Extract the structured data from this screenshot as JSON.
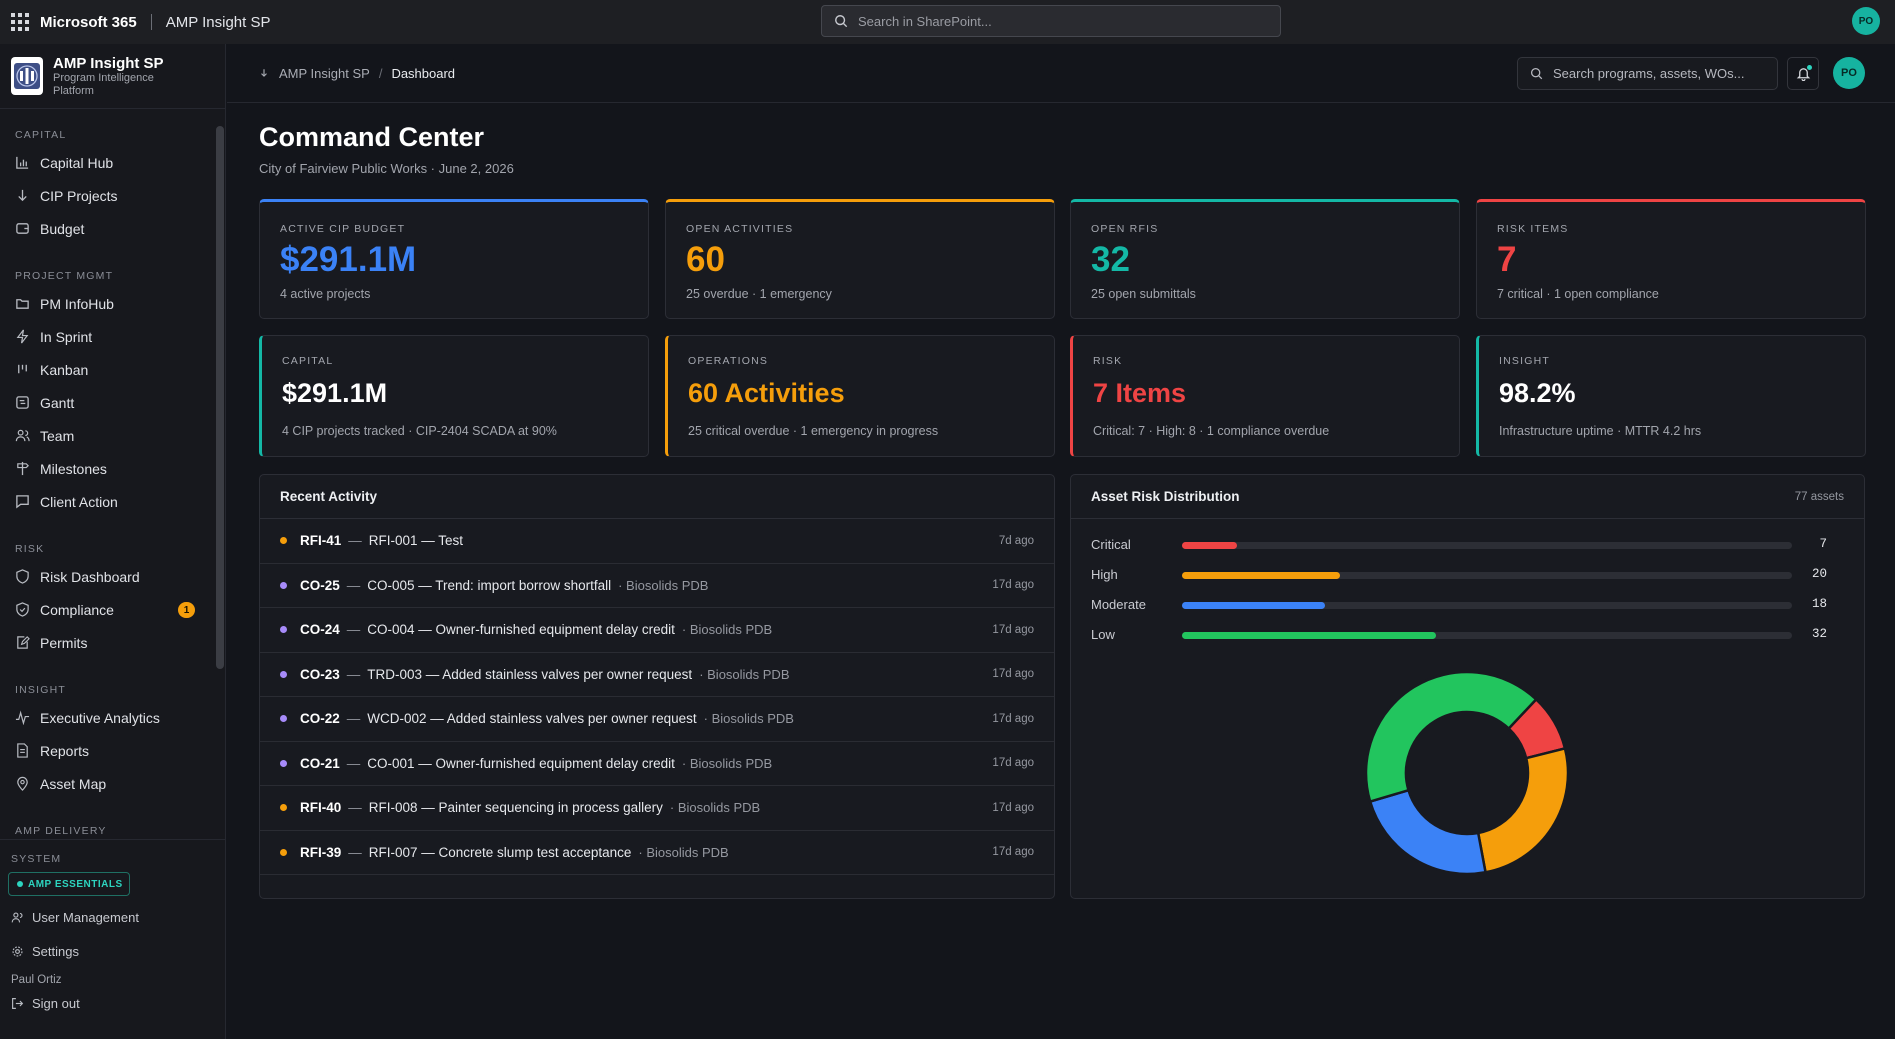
{
  "topbar": {
    "app_name": "Microsoft 365",
    "site_name": "AMP Insight SP",
    "search_placeholder": "Search in SharePoint...",
    "avatar_initials": "PO"
  },
  "brand": {
    "title": "AMP Insight SP",
    "subtitle": "Program Intelligence Platform"
  },
  "sidebar": {
    "sections": [
      {
        "title": "CAPITAL",
        "items": [
          {
            "label": "Capital Hub",
            "icon": "bar-chart-icon"
          },
          {
            "label": "CIP Projects",
            "icon": "arrow-down-icon"
          },
          {
            "label": "Budget",
            "icon": "wallet-icon"
          }
        ]
      },
      {
        "title": "PROJECT MGMT",
        "items": [
          {
            "label": "PM InfoHub",
            "icon": "folder-icon"
          },
          {
            "label": "In Sprint",
            "icon": "lightning-icon"
          },
          {
            "label": "Kanban",
            "icon": "kanban-icon"
          },
          {
            "label": "Gantt",
            "icon": "gantt-icon"
          },
          {
            "label": "Team",
            "icon": "team-icon"
          },
          {
            "label": "Milestones",
            "icon": "signpost-icon"
          },
          {
            "label": "Client Action",
            "icon": "message-icon"
          }
        ]
      },
      {
        "title": "RISK",
        "items": [
          {
            "label": "Risk Dashboard",
            "icon": "shield-icon"
          },
          {
            "label": "Compliance",
            "icon": "shield-check-icon",
            "badge": "1"
          },
          {
            "label": "Permits",
            "icon": "edit-doc-icon"
          }
        ]
      },
      {
        "title": "INSIGHT",
        "items": [
          {
            "label": "Executive Analytics",
            "icon": "activity-icon"
          },
          {
            "label": "Reports",
            "icon": "document-icon"
          },
          {
            "label": "Asset Map",
            "icon": "map-pin-icon"
          }
        ]
      },
      {
        "title": "AMP DELIVERY",
        "items": []
      }
    ],
    "system": {
      "title": "SYSTEM",
      "badge": "AMP ESSENTIALS",
      "user_management": "User Management",
      "settings": "Settings",
      "user_name": "Paul Ortiz",
      "sign_out": "Sign out"
    }
  },
  "header": {
    "breadcrumb_root": "AMP Insight SP",
    "breadcrumb_sep": "/",
    "breadcrumb_current": "Dashboard",
    "search_placeholder": "Search programs, assets, WOs...",
    "avatar_initials": "PO"
  },
  "page": {
    "title": "Command Center",
    "subtitle": "City of Fairview Public Works · June 2, 2026"
  },
  "kpis": [
    {
      "label": "ACTIVE CIP BUDGET",
      "value": "$291.1M",
      "sub": "4 active projects",
      "color": "#3b82f6"
    },
    {
      "label": "OPEN ACTIVITIES",
      "value": "60",
      "sub": "25 overdue · 1 emergency",
      "color": "#f59e0b"
    },
    {
      "label": "OPEN RFIS",
      "value": "32",
      "sub": "25 open submittals",
      "color": "#14b8a6"
    },
    {
      "label": "RISK ITEMS",
      "value": "7",
      "sub": "7 critical · 1 open compliance",
      "color": "#ef4444"
    }
  ],
  "summaries": [
    {
      "label": "CAPITAL",
      "value": "$291.1M",
      "sub": "4 CIP projects tracked · CIP-2404 SCADA at 90%",
      "accent": "#14b8a6",
      "value_color": "#ffffff"
    },
    {
      "label": "OPERATIONS",
      "value": "60 Activities",
      "sub": "25 critical overdue · 1 emergency in progress",
      "accent": "#f59e0b",
      "value_color": "#f59e0b"
    },
    {
      "label": "RISK",
      "value": "7 Items",
      "sub": "Critical: 7 · High: 8 · 1 compliance overdue",
      "accent": "#ef4444",
      "value_color": "#ef4444"
    },
    {
      "label": "INSIGHT",
      "value": "98.2%",
      "sub": "Infrastructure uptime · MTTR 4.2 hrs",
      "accent": "#14b8a6",
      "value_color": "#ffffff"
    }
  ],
  "recent_activity": {
    "title": "Recent Activity",
    "items": [
      {
        "id": "RFI-41",
        "title": "RFI-001 — Test",
        "project": "",
        "when": "7d ago",
        "color": "#f59e0b"
      },
      {
        "id": "CO-25",
        "title": "CO-005 — Trend: import borrow shortfall",
        "project": "· Biosolids PDB",
        "when": "17d ago",
        "color": "#a78bfa"
      },
      {
        "id": "CO-24",
        "title": "CO-004 — Owner-furnished equipment delay credit",
        "project": "· Biosolids PDB",
        "when": "17d ago",
        "color": "#a78bfa"
      },
      {
        "id": "CO-23",
        "title": "TRD-003 — Added stainless valves per owner request",
        "project": "· Biosolids PDB",
        "when": "17d ago",
        "color": "#a78bfa"
      },
      {
        "id": "CO-22",
        "title": "WCD-002 — Added stainless valves per owner request",
        "project": "· Biosolids PDB",
        "when": "17d ago",
        "color": "#a78bfa"
      },
      {
        "id": "CO-21",
        "title": "CO-001 — Owner-furnished equipment delay credit",
        "project": "· Biosolids PDB",
        "when": "17d ago",
        "color": "#a78bfa"
      },
      {
        "id": "RFI-40",
        "title": "RFI-008 — Painter sequencing in process gallery",
        "project": "· Biosolids PDB",
        "when": "17d ago",
        "color": "#f59e0b"
      },
      {
        "id": "RFI-39",
        "title": "RFI-007 — Concrete slump test acceptance",
        "project": "· Biosolids PDB",
        "when": "17d ago",
        "color": "#f59e0b"
      }
    ]
  },
  "asset_risk": {
    "title": "Asset Risk Distribution",
    "total_label": "77 assets",
    "categories": [
      {
        "label": "Critical",
        "value": 7,
        "color": "#ef4444"
      },
      {
        "label": "High",
        "value": 20,
        "color": "#f59e0b"
      },
      {
        "label": "Moderate",
        "value": 18,
        "color": "#3b82f6"
      },
      {
        "label": "Low",
        "value": 32,
        "color": "#22c55e"
      }
    ],
    "max": 77
  },
  "chart_data": {
    "type": "pie",
    "title": "Asset Risk Distribution",
    "categories": [
      "Critical",
      "High",
      "Moderate",
      "Low"
    ],
    "values": [
      7,
      20,
      18,
      32
    ],
    "colors": [
      "#ef4444",
      "#f59e0b",
      "#3b82f6",
      "#22c55e"
    ],
    "legend": "none"
  }
}
